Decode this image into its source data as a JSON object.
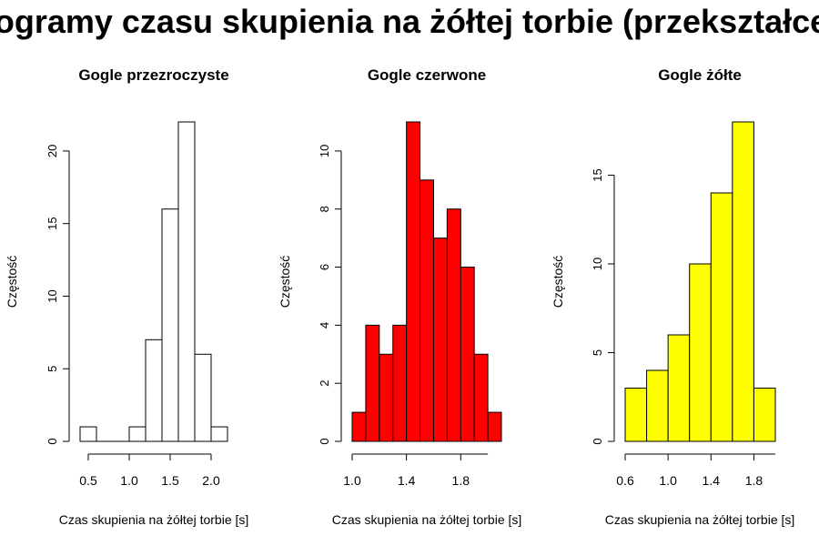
{
  "title": "Histogramy czasu skupienia na żółtej torbie (przekształcenie)",
  "chart_data": [
    {
      "type": "bar",
      "title": "Gogle przezroczyste",
      "xlabel": "Czas skupienia na żółtej torbie [s]",
      "ylabel": "Częstość",
      "fill": "#ffffff",
      "bin_edges": [
        0.4,
        0.6,
        0.8,
        1.0,
        1.2,
        1.4,
        1.6,
        1.8,
        2.0,
        2.2
      ],
      "values": [
        1,
        0,
        0,
        1,
        7,
        16,
        22,
        6,
        1
      ],
      "ylim": [
        0,
        22
      ],
      "xticks": [
        0.5,
        1.0,
        1.5,
        2.0
      ],
      "xtick_labels": [
        "0.5",
        "1.0",
        "1.5",
        "2.0"
      ],
      "xaxis_range": [
        0.5,
        2.0
      ],
      "yticks": [
        0,
        5,
        10,
        15,
        20
      ],
      "ytick_labels": [
        "0",
        "5",
        "10",
        "15",
        "20"
      ]
    },
    {
      "type": "bar",
      "title": "Gogle czerwone",
      "xlabel": "Czas skupienia na żółtej torbie [s]",
      "ylabel": "Częstość",
      "fill": "#ff0000",
      "bin_edges": [
        1.0,
        1.1,
        1.2,
        1.3,
        1.4,
        1.5,
        1.6,
        1.7,
        1.8,
        1.9,
        2.0,
        2.1
      ],
      "values": [
        1,
        4,
        3,
        4,
        11,
        9,
        7,
        8,
        6,
        3,
        1
      ],
      "ylim": [
        0,
        11
      ],
      "xticks": [
        1.0,
        1.4,
        1.8
      ],
      "xtick_labels": [
        "1.0",
        "1.4",
        "1.8"
      ],
      "xaxis_range": [
        1.0,
        2.0
      ],
      "yticks": [
        0,
        2,
        4,
        6,
        8,
        10
      ],
      "ytick_labels": [
        "0",
        "2",
        "4",
        "6",
        "8",
        "10"
      ]
    },
    {
      "type": "bar",
      "title": "Gogle żółte",
      "xlabel": "Czas skupienia na żółtej torbie [s]",
      "ylabel": "Częstość",
      "fill": "#ffff00",
      "bin_edges": [
        0.6,
        0.8,
        1.0,
        1.2,
        1.4,
        1.6,
        1.8,
        2.0
      ],
      "values": [
        3,
        4,
        6,
        10,
        14,
        18,
        3
      ],
      "ylim": [
        0,
        18
      ],
      "xticks": [
        0.6,
        1.0,
        1.4,
        1.8
      ],
      "xtick_labels": [
        "0.6",
        "1.0",
        "1.4",
        "1.8"
      ],
      "xaxis_range": [
        0.6,
        2.0
      ],
      "yticks": [
        0,
        5,
        10,
        15
      ],
      "ytick_labels": [
        "0",
        "5",
        "10",
        "15"
      ]
    }
  ]
}
